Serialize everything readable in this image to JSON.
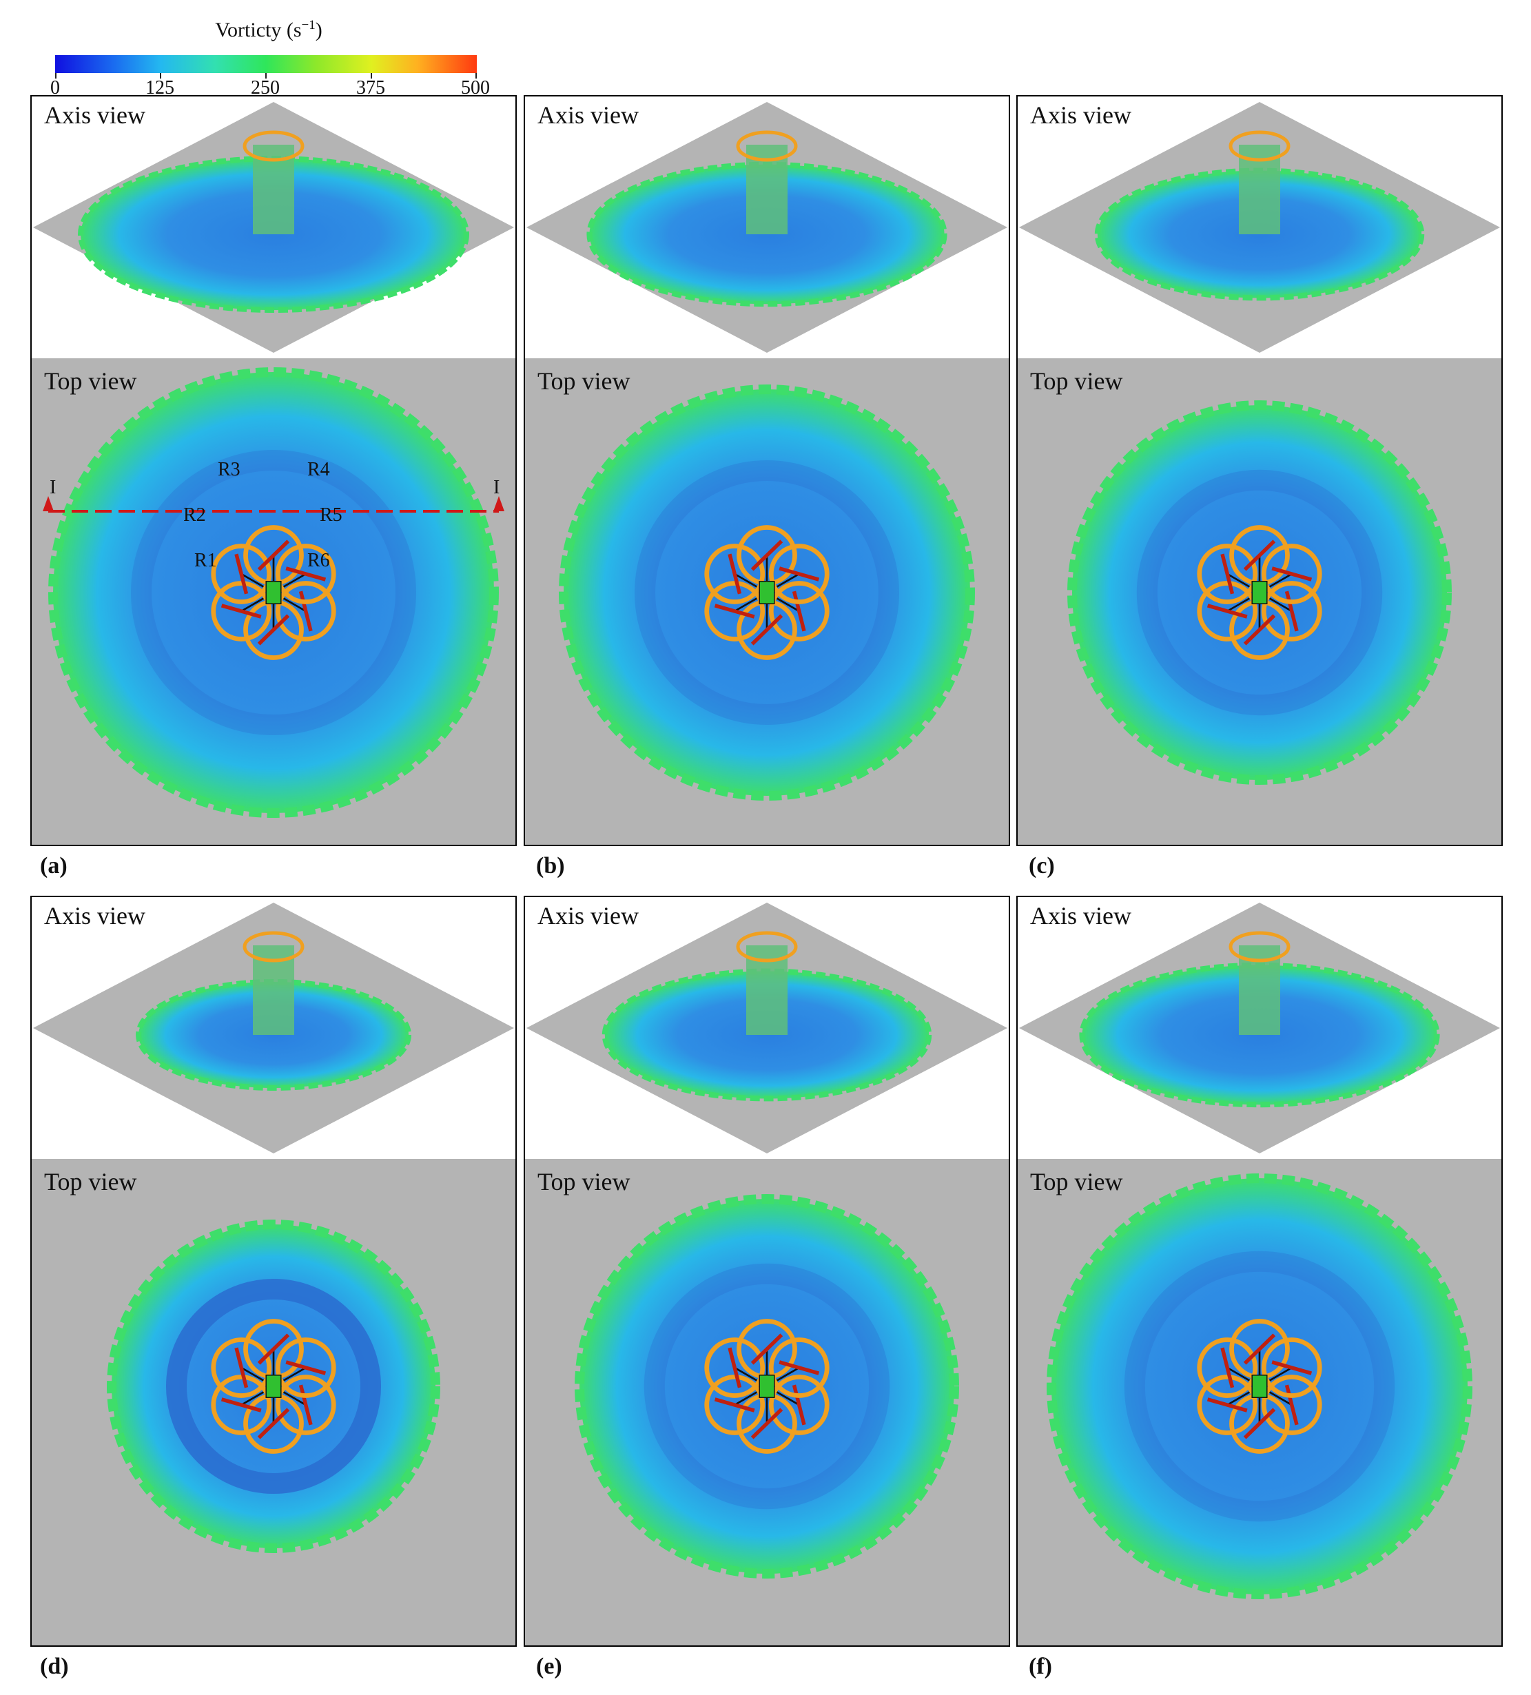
{
  "colorbar": {
    "title_base": "Vorticty (s",
    "title_exp": "−1",
    "title_close": ")",
    "ticks": [
      "0",
      "125",
      "250",
      "375",
      "500"
    ],
    "colors": [
      "#1010e0",
      "#24b8f0",
      "#2fe65a",
      "#e0f020",
      "#ff3a10"
    ]
  },
  "panels": [
    {
      "letter": "(a)",
      "axis_label": "Axis view",
      "top_label": "Top view"
    },
    {
      "letter": "(b)",
      "axis_label": "Axis view",
      "top_label": "Top view"
    },
    {
      "letter": "(c)",
      "axis_label": "Axis view",
      "top_label": "Top view"
    },
    {
      "letter": "(d)",
      "axis_label": "Axis view",
      "top_label": "Top view"
    },
    {
      "letter": "(e)",
      "axis_label": "Axis view",
      "top_label": "Top view"
    },
    {
      "letter": "(f)",
      "axis_label": "Axis view",
      "top_label": "Top view"
    }
  ],
  "rotor_labels": [
    "R1",
    "R2",
    "R3",
    "R4",
    "R5",
    "R6"
  ],
  "section_markers": [
    "I",
    "I"
  ],
  "colors": {
    "ground": "#b4b4b4",
    "wake_blue": "#2a7fe0",
    "wake_cyan": "#28b8e8",
    "wake_green": "#3ede6a",
    "rotor_orange": "#f0a020",
    "section_line": "#d01818"
  }
}
